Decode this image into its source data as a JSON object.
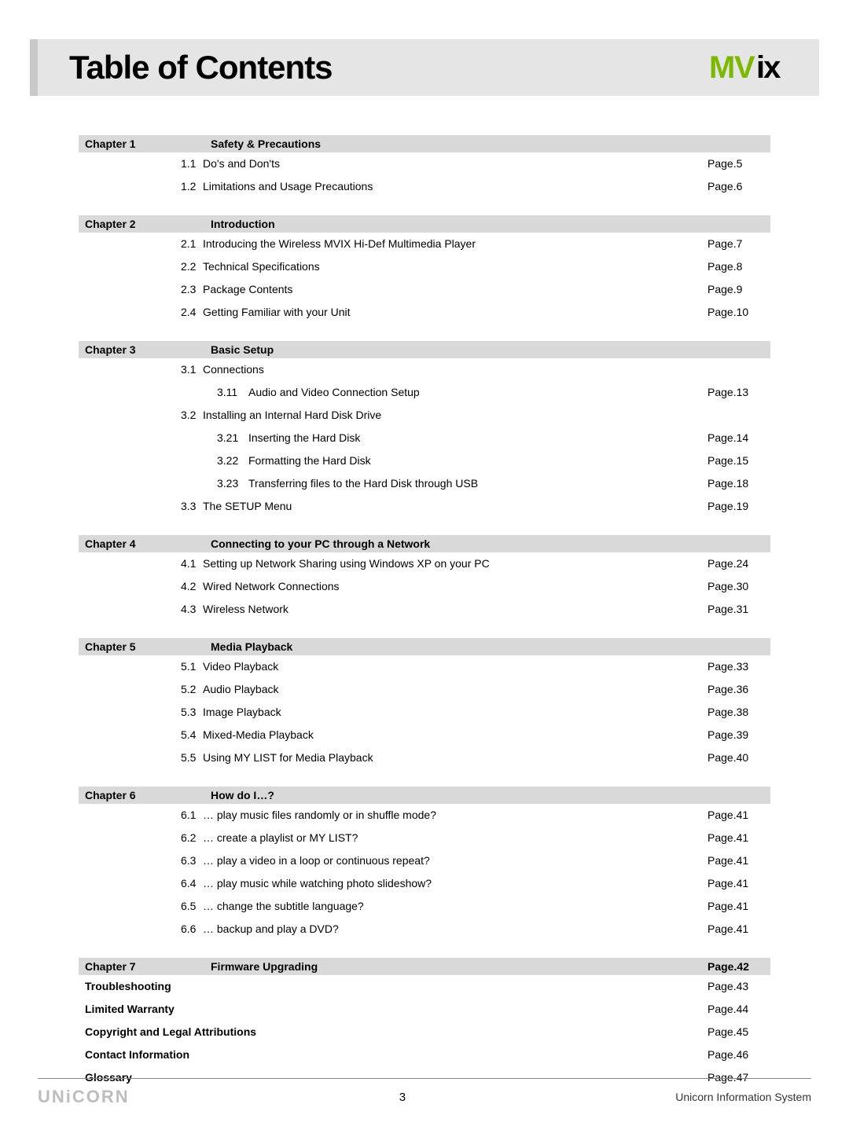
{
  "header": {
    "title": "Table of Contents",
    "logo_m": "M",
    "logo_v": "V",
    "logo_ix": "ix"
  },
  "chapters": [
    {
      "label": "Chapter 1",
      "title": "Safety & Precautions",
      "page": "",
      "sections": [
        {
          "num": "1.1",
          "text": "Do's and Don'ts",
          "page": "Page.5"
        },
        {
          "num": "1.2",
          "text": "Limitations and Usage Precautions",
          "page": "Page.6"
        }
      ]
    },
    {
      "label": "Chapter 2",
      "title": "Introduction",
      "page": "",
      "sections": [
        {
          "num": "2.1",
          "text": "Introducing the Wireless MVIX Hi-Def Multimedia Player",
          "page": "Page.7"
        },
        {
          "num": "2.2",
          "text": "Technical Specifications",
          "page": "Page.8"
        },
        {
          "num": "2.3",
          "text": "Package Contents",
          "page": "Page.9"
        },
        {
          "num": "2.4",
          "text": "Getting Familiar with your Unit",
          "page": "Page.10"
        }
      ]
    },
    {
      "label": "Chapter 3",
      "title": "Basic Setup",
      "page": "",
      "sections": [
        {
          "num": "3.1",
          "text": "Connections",
          "page": ""
        },
        {
          "sub": true,
          "num": "3.11",
          "text": "Audio and Video Connection Setup",
          "page": "Page.13"
        },
        {
          "num": "3.2",
          "text": "Installing an Internal Hard Disk Drive",
          "page": ""
        },
        {
          "sub": true,
          "num": "3.21",
          "text": "Inserting the Hard Disk",
          "page": "Page.14"
        },
        {
          "sub": true,
          "num": "3.22",
          "text": "Formatting the Hard Disk",
          "page": "Page.15"
        },
        {
          "sub": true,
          "num": "3.23",
          "text": "Transferring files to the Hard Disk through USB",
          "page": "Page.18"
        },
        {
          "num": "3.3",
          "text": "The SETUP Menu",
          "page": "Page.19"
        }
      ]
    },
    {
      "label": "Chapter 4",
      "title": "Connecting to your PC through a Network",
      "page": "",
      "sections": [
        {
          "num": "4.1",
          "text": "Setting up Network Sharing using Windows XP on your PC",
          "page": "Page.24"
        },
        {
          "num": "4.2",
          "text": "Wired Network Connections",
          "page": "Page.30"
        },
        {
          "num": "4.3",
          "text": "Wireless Network",
          "page": "Page.31"
        }
      ]
    },
    {
      "label": "Chapter 5",
      "title": "Media Playback",
      "page": "",
      "sections": [
        {
          "num": "5.1",
          "text": "Video Playback",
          "page": "Page.33"
        },
        {
          "num": "5.2",
          "text": "Audio Playback",
          "page": "Page.36"
        },
        {
          "num": "5.3",
          "text": "Image Playback",
          "page": "Page.38"
        },
        {
          "num": "5.4",
          "text": "Mixed-Media Playback",
          "page": "Page.39"
        },
        {
          "num": "5.5",
          "text": "Using MY LIST for Media Playback",
          "page": "Page.40"
        }
      ]
    },
    {
      "label": "Chapter 6",
      "title": "How do I…?",
      "page": "",
      "sections": [
        {
          "num": "6.1",
          "text": "… play music files randomly or in shuffle mode?",
          "page": "Page.41"
        },
        {
          "num": "6.2",
          "text": "… create a playlist or MY LIST?",
          "page": "Page.41"
        },
        {
          "num": "6.3",
          "text": "… play a video in a loop or continuous repeat?",
          "page": "Page.41"
        },
        {
          "num": "6.4",
          "text": "… play music while watching photo slideshow?",
          "page": "Page.41"
        },
        {
          "num": "6.5",
          "text": "… change the subtitle language?",
          "page": "Page.41"
        },
        {
          "num": "6.6",
          "text": "… backup and play a DVD?",
          "page": "Page.41"
        }
      ]
    },
    {
      "label": "Chapter 7",
      "title": "Firmware Upgrading",
      "page": "Page.42",
      "sections": []
    }
  ],
  "appendix": [
    {
      "label": "Troubleshooting",
      "page": "Page.43"
    },
    {
      "label": "Limited Warranty",
      "page": "Page.44"
    },
    {
      "label": "Copyright and Legal Attributions",
      "page": "Page.45"
    },
    {
      "label": "Contact Information",
      "page": "Page.46"
    },
    {
      "label": "Glossary",
      "page": "Page.47"
    }
  ],
  "footer": {
    "logo": "UNiCORN",
    "page_number": "3",
    "right": "Unicorn Information System"
  },
  "colors": {
    "header_bg": "#e5e5e5",
    "header_border": "#c8c8c8",
    "chapter_bg": "#d9d9d9",
    "logo_green": "#7bb800",
    "footer_logo": "#bdbdbd"
  }
}
